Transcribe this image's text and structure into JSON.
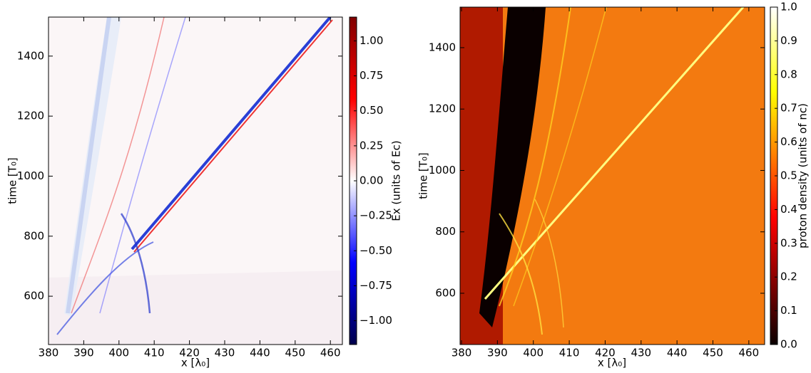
{
  "chart_data": [
    {
      "type": "heatmap",
      "colormap": "seismic",
      "xlabel": "x [λ₀]",
      "ylabel": "time [T₀]",
      "xlim": [
        380,
        463.4
      ],
      "ylim": [
        439,
        1530
      ],
      "xticks": [
        380,
        390,
        400,
        410,
        420,
        430,
        440,
        450,
        460
      ],
      "yticks": [
        600,
        800,
        1000,
        1200,
        1400
      ],
      "colorbar": {
        "label": "Ex (units of Ec)",
        "lim": [
          -1.17,
          1.17
        ],
        "ticks": [
          {
            "value": 1,
            "label": "1.00"
          },
          {
            "value": 0.75,
            "label": "0.75"
          },
          {
            "value": 0.5,
            "label": "0.50"
          },
          {
            "value": 0.25,
            "label": "0.25"
          },
          {
            "value": 0,
            "label": "0.00"
          },
          {
            "value": -0.25,
            "label": "−0.25"
          },
          {
            "value": -0.5,
            "label": "−0.50"
          },
          {
            "value": -0.75,
            "label": "−0.75"
          },
          {
            "value": -1,
            "label": "−1.00"
          }
        ]
      }
    },
    {
      "type": "heatmap",
      "colormap": "hot",
      "xlabel": "x [λ₀]",
      "ylabel": "time [T₀]",
      "xlim": [
        379.6,
        464.4
      ],
      "ylim": [
        433,
        1532
      ],
      "xticks": [
        380,
        390,
        400,
        410,
        420,
        430,
        440,
        450,
        460
      ],
      "yticks": [
        600,
        800,
        1000,
        1200,
        1400
      ],
      "colorbar": {
        "label": "proton density (units of nc)",
        "lim": [
          0,
          1
        ],
        "ticks": [
          {
            "value": 0,
            "label": "0.0"
          },
          0.1,
          0.2,
          0.3,
          0.4,
          0.5,
          0.6,
          0.7,
          0.8,
          0.9,
          {
            "value": 1,
            "label": "1.0"
          }
        ]
      }
    }
  ]
}
